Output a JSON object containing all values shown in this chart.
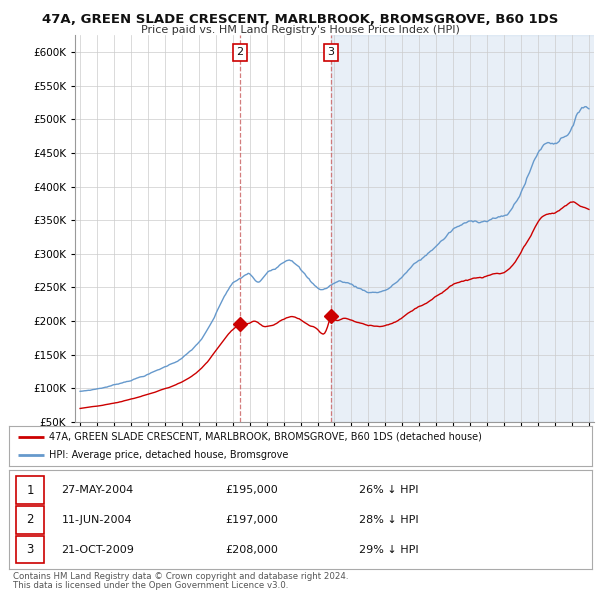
{
  "title": "47A, GREEN SLADE CRESCENT, MARLBROOK, BROMSGROVE, B60 1DS",
  "subtitle": "Price paid vs. HM Land Registry's House Price Index (HPI)",
  "hpi_color": "#6699cc",
  "hpi_fill_color": "#ddeeff",
  "price_color": "#cc0000",
  "background_color": "#ffffff",
  "grid_color": "#cccccc",
  "ylim_min": 50000,
  "ylim_max": 625000,
  "yticks": [
    50000,
    100000,
    150000,
    200000,
    250000,
    300000,
    350000,
    400000,
    450000,
    500000,
    550000,
    600000
  ],
  "legend_label_red": "47A, GREEN SLADE CRESCENT, MARLBROOK, BROMSGROVE, B60 1DS (detached house)",
  "legend_label_blue": "HPI: Average price, detached house, Bromsgrove",
  "transactions": [
    {
      "num": 1,
      "date": "27-MAY-2004",
      "price": 195000,
      "pct": "26%",
      "direction": "↓"
    },
    {
      "num": 2,
      "date": "11-JUN-2004",
      "price": 197000,
      "pct": "28%",
      "direction": "↓"
    },
    {
      "num": 3,
      "date": "21-OCT-2009",
      "price": 208000,
      "pct": "29%",
      "direction": "↓"
    }
  ],
  "footer1": "Contains HM Land Registry data © Crown copyright and database right 2024.",
  "footer2": "This data is licensed under the Open Government Licence v3.0.",
  "vline1_x": 2004.42,
  "vline2_x": 2009.8,
  "marker1_x": 2004.42,
  "marker1_y": 195000,
  "marker1_label": "2",
  "marker2_x": 2009.8,
  "marker2_y": 208000,
  "marker2_label": "3",
  "xmin": 1994.7,
  "xmax": 2025.3
}
